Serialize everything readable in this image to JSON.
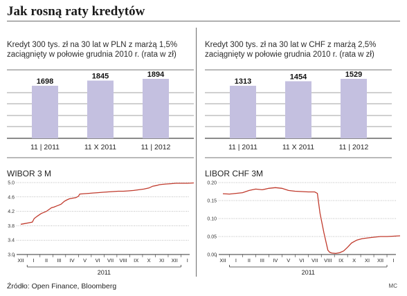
{
  "title": "Jak rosną raty kredytów",
  "source": "Źródło: Open Finance, Bloomberg",
  "credit": "MC",
  "colors": {
    "bar": "#c4c0e0",
    "line": "#c0392b",
    "grid": "#444444"
  },
  "chart_data": [
    {
      "type": "bar",
      "title": "Kredyt 300 tys. zł na 30 lat w PLN z marżą 1,5% zaciągnięty w połowie grudnia 2010 r. (rata w zł)",
      "title_lines": [
        "Kredyt 300 tys. zł na 30 lat w PLN z marżą 1,5%",
        "zaciągnięty w połowie grudnia 2010 r. (rata w zł)"
      ],
      "categories": [
        "11 | 2011",
        "11 X 2011",
        "11 | 2012"
      ],
      "values": [
        1698,
        1845,
        1894
      ],
      "grid": true
    },
    {
      "type": "bar",
      "title": "Kredyt 300 tys. zł na 30 lat w CHF z marżą 2,5% zaciągnięty w połowie grudnia 2010 r. (rata w zł)",
      "title_lines": [
        "Kredyt 300 tys. zł na 30 lat w CHF z marżą 2,5%",
        "zaciągnięty w połowie grudnia 2010 r. (rata w zł)"
      ],
      "categories": [
        "11 | 2011",
        "11 X 2011",
        "11 | 2012"
      ],
      "values": [
        1313,
        1454,
        1529
      ],
      "grid": true
    },
    {
      "type": "line",
      "title": "WIBOR 3 M",
      "ylim": [
        3.0,
        5.0
      ],
      "yticks": [
        "5.0",
        "4.6",
        "4.2",
        "3.8",
        "3.4",
        "3.0"
      ],
      "months": [
        "XII",
        "I",
        "II",
        "III",
        "IV",
        "V",
        "VI",
        "VII",
        "VIII",
        "IX",
        "X",
        "XI",
        "XII",
        "I"
      ],
      "year_label": "2011",
      "x": [
        0,
        0.3,
        0.6,
        0.9,
        1.05,
        1.3,
        1.6,
        1.8,
        2.0,
        2.2,
        2.4,
        2.6,
        2.8,
        2.95,
        3.15,
        3.4,
        3.6,
        3.8,
        4.1,
        4.3,
        4.5,
        4.6,
        4.9,
        5.3,
        5.6,
        6.0,
        6.4,
        6.8,
        7.2,
        7.6,
        8.0,
        8.4,
        8.8,
        9.2,
        9.6,
        10.0,
        10.3,
        10.6,
        10.8,
        11.0,
        11.3,
        11.7,
        12.1,
        12.6,
        13.0,
        13.5
      ],
      "y": [
        3.84,
        3.86,
        3.88,
        3.9,
        4.0,
        4.07,
        4.14,
        4.17,
        4.2,
        4.25,
        4.3,
        4.32,
        4.35,
        4.37,
        4.4,
        4.48,
        4.52,
        4.55,
        4.57,
        4.58,
        4.62,
        4.68,
        4.69,
        4.7,
        4.71,
        4.72,
        4.73,
        4.74,
        4.75,
        4.76,
        4.76,
        4.77,
        4.78,
        4.8,
        4.82,
        4.85,
        4.9,
        4.92,
        4.94,
        4.95,
        4.96,
        4.97,
        4.98,
        4.98,
        4.98,
        4.99
      ],
      "grid": true
    },
    {
      "type": "line",
      "title": "LIBOR CHF 3M",
      "ylim": [
        0.0,
        0.2
      ],
      "yticks": [
        "0.20",
        "0.15",
        "0.10",
        "0.05",
        "0.00"
      ],
      "months": [
        "XII",
        "I",
        "II",
        "III",
        "IV",
        "V",
        "VI",
        "VII",
        "VIII",
        "IX",
        "X",
        "XI",
        "XII",
        "I"
      ],
      "year_label": "2011",
      "x": [
        0,
        0.5,
        1.0,
        1.5,
        2.0,
        2.5,
        3.0,
        3.5,
        4.0,
        4.5,
        5.0,
        5.5,
        6.0,
        6.5,
        7.0,
        7.2,
        7.4,
        7.7,
        8.0,
        8.15,
        8.3,
        8.6,
        8.9,
        9.2,
        9.5,
        9.8,
        10.2,
        10.6,
        11.0,
        11.5,
        12.0,
        12.5,
        13.0,
        13.5
      ],
      "y": [
        0.169,
        0.168,
        0.17,
        0.172,
        0.178,
        0.182,
        0.18,
        0.184,
        0.186,
        0.184,
        0.178,
        0.176,
        0.175,
        0.174,
        0.174,
        0.17,
        0.115,
        0.06,
        0.012,
        0.006,
        0.004,
        0.003,
        0.005,
        0.01,
        0.02,
        0.032,
        0.04,
        0.044,
        0.046,
        0.048,
        0.05,
        0.05,
        0.051,
        0.052
      ],
      "grid": true
    }
  ]
}
